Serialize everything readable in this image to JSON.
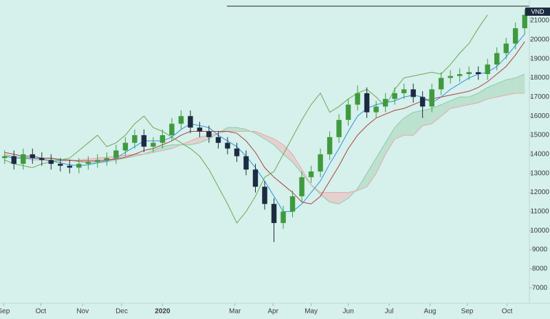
{
  "chart_data": {
    "type": "candlestick",
    "currency": "VND",
    "x": [
      0.5,
      1.5,
      2.5,
      3.5,
      4.5,
      5.5,
      6.5,
      7.5,
      8.5,
      9.5,
      10.5,
      11.5,
      12.5,
      13.5,
      14.5,
      15.5,
      16.5,
      17.5,
      18.5,
      19.5,
      20.5,
      21.5,
      22.5,
      23.5,
      24.5,
      25.5,
      26.5,
      27.5,
      28.5,
      29.5,
      30.5,
      31.5,
      32.5,
      33.5,
      34.5,
      35.5,
      36.5,
      37.5,
      38.5,
      39.5,
      40.5,
      41.5,
      42.5,
      43.5,
      44.5,
      45.5,
      46.5,
      47.5,
      48.5,
      49.5,
      50.5,
      51.5,
      52.5,
      53.5,
      54.5,
      55.5,
      56.5
    ],
    "xlim": [
      0,
      57
    ],
    "xticks": [
      {
        "value": 0.4,
        "label": "Sep"
      },
      {
        "value": 4.4,
        "label": "Oct"
      },
      {
        "value": 8.9,
        "label": "Nov"
      },
      {
        "value": 13.1,
        "label": "Dec"
      },
      {
        "value": 17.5,
        "label": "2020"
      },
      {
        "value": 25.3,
        "label": "Mar"
      },
      {
        "value": 29.4,
        "label": "Apr"
      },
      {
        "value": 33.5,
        "label": "May"
      },
      {
        "value": 37.5,
        "label": "Jun"
      },
      {
        "value": 41.9,
        "label": "Jul"
      },
      {
        "value": 46.3,
        "label": "Aug"
      },
      {
        "value": 50.3,
        "label": "Sep"
      },
      {
        "value": 54.6,
        "label": "Oct"
      }
    ],
    "ylim": [
      6200,
      22080
    ],
    "yticks": [
      7000,
      8000,
      9000,
      10000,
      11000,
      12000,
      13000,
      14000,
      15000,
      16000,
      17000,
      18000,
      19000,
      20000,
      21000
    ],
    "up_color": "#3f9a3f",
    "down_color": "#1c2b3f",
    "open": [
      13800,
      13900,
      13500,
      14000,
      13800,
      13700,
      13500,
      13400,
      13300,
      13500,
      13600,
      13700,
      13800,
      14200,
      14600,
      15000,
      14400,
      14600,
      15000,
      15600,
      16000,
      15400,
      15200,
      14900,
      14600,
      14300,
      13900,
      13200,
      12300,
      11400,
      10400,
      11000,
      11800,
      12800,
      13100,
      14000,
      14900,
      15800,
      16600,
      17200,
      16200,
      16500,
      16900,
      17200,
      17400,
      17000,
      16500,
      17400,
      18000,
      18100,
      18200,
      18300,
      18200,
      18700,
      19300,
      19800,
      20600
    ],
    "high": [
      14200,
      14200,
      14300,
      14300,
      14100,
      14000,
      13800,
      13700,
      13800,
      13900,
      14000,
      14100,
      14500,
      14900,
      15300,
      15300,
      14900,
      15300,
      15900,
      16300,
      16300,
      15700,
      15500,
      15200,
      14900,
      14600,
      14200,
      13500,
      12600,
      11700,
      11300,
      12100,
      13100,
      13400,
      14300,
      15200,
      16100,
      16900,
      17600,
      17500,
      16800,
      17200,
      17500,
      17700,
      17700,
      17300,
      17700,
      18300,
      18400,
      18500,
      18600,
      18600,
      19000,
      19600,
      20100,
      20900,
      21600
    ],
    "low": [
      13500,
      13200,
      13200,
      13500,
      13400,
      13200,
      13100,
      13000,
      13000,
      13200,
      13300,
      13400,
      13500,
      13900,
      14300,
      14100,
      14100,
      14300,
      14700,
      15300,
      15100,
      14900,
      14600,
      14300,
      14000,
      13600,
      12900,
      12000,
      11100,
      9400,
      10100,
      10700,
      11500,
      12500,
      12800,
      13700,
      14600,
      15500,
      16300,
      15900,
      15900,
      16200,
      16600,
      16900,
      16700,
      15900,
      16200,
      17100,
      17700,
      17800,
      17900,
      17900,
      17900,
      18400,
      19000,
      19500,
      20300
    ],
    "close": [
      13900,
      13500,
      14000,
      13800,
      13700,
      13500,
      13400,
      13300,
      13500,
      13600,
      13700,
      13800,
      14200,
      14600,
      15000,
      14400,
      14600,
      15000,
      15600,
      16000,
      15400,
      15200,
      14900,
      14600,
      14300,
      13900,
      13200,
      12300,
      11400,
      10400,
      11000,
      11800,
      12800,
      13100,
      14000,
      14900,
      15800,
      16600,
      17200,
      16200,
      16500,
      16900,
      17200,
      17400,
      17000,
      16500,
      17400,
      18000,
      18100,
      18200,
      18300,
      18200,
      18700,
      19300,
      19800,
      20600,
      21300
    ],
    "series": [
      {
        "color": "#2f8fe0",
        "values": [
          13900,
          13800,
          13800,
          13800,
          13750,
          13650,
          13550,
          13450,
          13400,
          13450,
          13550,
          13650,
          13800,
          14100,
          14400,
          14700,
          14700,
          14700,
          14900,
          15300,
          15600,
          15500,
          15400,
          15000,
          14700,
          14400,
          13900,
          13300,
          12600,
          11800,
          11000,
          11000,
          11400,
          12000,
          12600,
          13500,
          14300,
          15200,
          16000,
          16400,
          16600,
          16700,
          16800,
          17000,
          17100,
          17000,
          16700,
          17000,
          17400,
          17700,
          18000,
          18200,
          18300,
          18600,
          19100,
          19700,
          20300
        ]
      },
      {
        "color": "#a8413a",
        "values": [
          14100,
          14000,
          13900,
          13900,
          13800,
          13800,
          13700,
          13700,
          13650,
          13650,
          13650,
          13700,
          13750,
          13850,
          14000,
          14200,
          14300,
          14500,
          14700,
          15000,
          15200,
          15200,
          15200,
          15200,
          15200,
          15100,
          14700,
          14100,
          13300,
          12800,
          12400,
          12000,
          11500,
          11400,
          11800,
          12600,
          13400,
          14300,
          15000,
          15500,
          15900,
          16100,
          16300,
          16400,
          16600,
          16800,
          16900,
          17000,
          17100,
          17200,
          17300,
          17500,
          17800,
          18200,
          18600,
          19200,
          19900
        ]
      },
      {
        "color": "#6aa84f",
        "values": [
          13700,
          13500,
          13400,
          13300,
          13500,
          13600,
          13700,
          13800,
          14200,
          14600,
          15000,
          14400,
          14600,
          15000,
          15600,
          16000,
          15400,
          15200,
          14900,
          14600,
          14300,
          13900,
          13200,
          12300,
          11400,
          10400,
          11000,
          11800,
          12800,
          13100,
          14000,
          14900,
          15800,
          16600,
          17200,
          16200,
          16500,
          16900,
          17200,
          17400,
          17000,
          16500,
          17400,
          18000,
          18100,
          18200,
          18300,
          18200,
          18700,
          19300,
          19800,
          20600,
          21300,
          null,
          null,
          null,
          null
        ]
      }
    ],
    "cloud": {
      "span_a": {
        "color": "#8cc9a6",
        "values": [
          13900,
          13900,
          13850,
          13800,
          13800,
          13800,
          13750,
          13700,
          13600,
          13550,
          13550,
          13600,
          13700,
          13800,
          13900,
          14000,
          14200,
          14400,
          14500,
          14500,
          14500,
          14600,
          14800,
          15100,
          15400,
          15400,
          15300,
          15100,
          14800,
          14500,
          14000,
          13600,
          13000,
          12400,
          11900,
          11500,
          11400,
          11700,
          12200,
          13000,
          13800,
          14600,
          15400,
          15900,
          16200,
          16300,
          16400,
          16600,
          16800,
          17000,
          17000,
          17200,
          17500,
          17700,
          17900,
          18000,
          18200
        ]
      },
      "span_b": {
        "color": "#e2a8a8",
        "values": [
          14000,
          13900,
          13800,
          13700,
          13700,
          13650,
          13650,
          13650,
          13700,
          13750,
          13800,
          13850,
          13900,
          13950,
          14000,
          14000,
          14100,
          14200,
          14300,
          14500,
          14700,
          14900,
          15000,
          15100,
          15200,
          15200,
          15200,
          15200,
          15000,
          14800,
          14500,
          14000,
          13200,
          12400,
          12000,
          12000,
          12000,
          12000,
          12100,
          12300,
          13000,
          14000,
          14800,
          15000,
          15000,
          15500,
          15600,
          16000,
          16400,
          16500,
          16600,
          16700,
          16900,
          17000,
          17100,
          17200,
          17200
        ]
      },
      "up_fill": "#b5dfc8",
      "down_fill": "#e6c9c9"
    }
  }
}
